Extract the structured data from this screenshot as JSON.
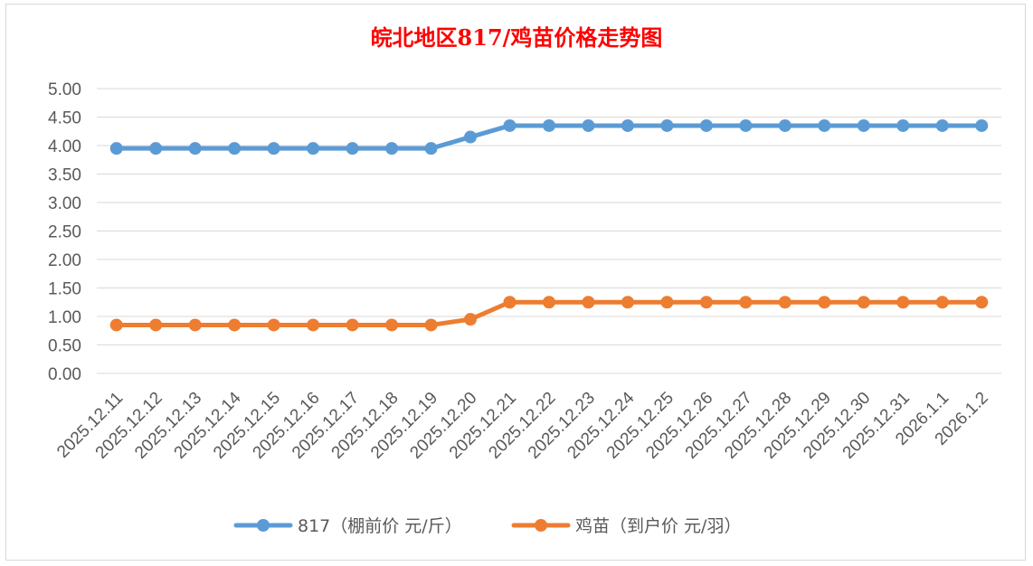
{
  "colors": {
    "series_817": "#5b9bd5",
    "series_chick": "#ed7d31",
    "title": "#ff0000",
    "grid": "#d9d9d9",
    "text": "#595959"
  },
  "chart_data": {
    "type": "line",
    "title": "皖北地区817/鸡苗价格走势图",
    "xlabel": "",
    "ylabel": "",
    "ylim": [
      0,
      5
    ],
    "ytick_step": 0.5,
    "ytick_decimals": 2,
    "grid": true,
    "legend": "bottom",
    "categories": [
      "2025.12.11",
      "2025.12.12",
      "2025.12.13",
      "2025.12.14",
      "2025.12.15",
      "2025.12.16",
      "2025.12.17",
      "2025.12.18",
      "2025.12.19",
      "2025.12.20",
      "2025.12.21",
      "2025.12.22",
      "2025.12.23",
      "2025.12.24",
      "2025.12.25",
      "2025.12.26",
      "2025.12.27",
      "2025.12.28",
      "2025.12.29",
      "2025.12.30",
      "2025.12.31",
      "2026.1.1",
      "2026.1.2"
    ],
    "series": [
      {
        "name": "817（棚前价 元/斤）",
        "color": "#5b9bd5",
        "values": [
          3.95,
          3.95,
          3.95,
          3.95,
          3.95,
          3.95,
          3.95,
          3.95,
          3.95,
          4.15,
          4.35,
          4.35,
          4.35,
          4.35,
          4.35,
          4.35,
          4.35,
          4.35,
          4.35,
          4.35,
          4.35,
          4.35,
          4.35
        ]
      },
      {
        "name": "鸡苗（到户价 元/羽）",
        "color": "#ed7d31",
        "values": [
          0.85,
          0.85,
          0.85,
          0.85,
          0.85,
          0.85,
          0.85,
          0.85,
          0.85,
          0.95,
          1.25,
          1.25,
          1.25,
          1.25,
          1.25,
          1.25,
          1.25,
          1.25,
          1.25,
          1.25,
          1.25,
          1.25,
          1.25
        ]
      }
    ]
  }
}
